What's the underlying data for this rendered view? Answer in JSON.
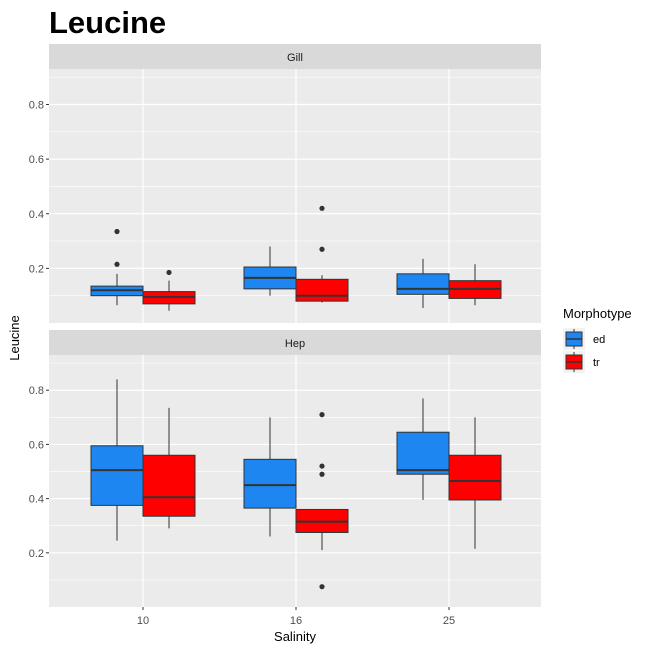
{
  "chart_data": {
    "type": "boxplot",
    "title": "Leucine",
    "xlabel": "Salinity",
    "ylabel": "Leucine",
    "categories": [
      "10",
      "16",
      "25"
    ],
    "ylim": [
      0.0,
      0.93
    ],
    "yticks": [
      0.2,
      0.4,
      0.6,
      0.8
    ],
    "ytick_labels": [
      "0.2",
      "0.4",
      "0.6",
      "0.8"
    ],
    "legend": {
      "title": "Morphotype",
      "position": "right",
      "entries": [
        {
          "name": "ed",
          "color": "#1e86f0"
        },
        {
          "name": "tr",
          "color": "#ff0000"
        }
      ]
    },
    "panels": [
      {
        "facet": "Gill",
        "series": [
          {
            "name": "ed",
            "boxes": [
              {
                "category": "10",
                "min": 0.065,
                "q1": 0.1,
                "median": 0.12,
                "q3": 0.135,
                "max": 0.18,
                "outliers": [
                  0.215,
                  0.335
                ]
              },
              {
                "category": "16",
                "min": 0.1,
                "q1": 0.125,
                "median": 0.165,
                "q3": 0.205,
                "max": 0.28,
                "outliers": []
              },
              {
                "category": "25",
                "min": 0.055,
                "q1": 0.105,
                "median": 0.125,
                "q3": 0.18,
                "max": 0.235,
                "outliers": []
              }
            ]
          },
          {
            "name": "tr",
            "boxes": [
              {
                "category": "10",
                "min": 0.045,
                "q1": 0.07,
                "median": 0.095,
                "q3": 0.115,
                "max": 0.155,
                "outliers": [
                  0.185
                ]
              },
              {
                "category": "16",
                "min": 0.075,
                "q1": 0.08,
                "median": 0.1,
                "q3": 0.16,
                "max": 0.175,
                "outliers": [
                  0.27,
                  0.42
                ]
              },
              {
                "category": "25",
                "min": 0.065,
                "q1": 0.09,
                "median": 0.125,
                "q3": 0.155,
                "max": 0.215,
                "outliers": []
              }
            ]
          }
        ]
      },
      {
        "facet": "Hep",
        "series": [
          {
            "name": "ed",
            "boxes": [
              {
                "category": "10",
                "min": 0.245,
                "q1": 0.375,
                "median": 0.505,
                "q3": 0.595,
                "max": 0.84,
                "outliers": []
              },
              {
                "category": "16",
                "min": 0.26,
                "q1": 0.365,
                "median": 0.45,
                "q3": 0.545,
                "max": 0.7,
                "outliers": []
              },
              {
                "category": "25",
                "min": 0.395,
                "q1": 0.49,
                "median": 0.505,
                "q3": 0.645,
                "max": 0.77,
                "outliers": []
              }
            ]
          },
          {
            "name": "tr",
            "boxes": [
              {
                "category": "10",
                "min": 0.29,
                "q1": 0.335,
                "median": 0.405,
                "q3": 0.56,
                "max": 0.735,
                "outliers": []
              },
              {
                "category": "16",
                "min": 0.21,
                "q1": 0.275,
                "median": 0.315,
                "q3": 0.36,
                "max": 0.36,
                "outliers": [
                  0.075,
                  0.49,
                  0.52,
                  0.71
                ]
              },
              {
                "category": "25",
                "min": 0.215,
                "q1": 0.395,
                "median": 0.465,
                "q3": 0.56,
                "max": 0.7,
                "outliers": []
              }
            ]
          }
        ]
      }
    ]
  }
}
